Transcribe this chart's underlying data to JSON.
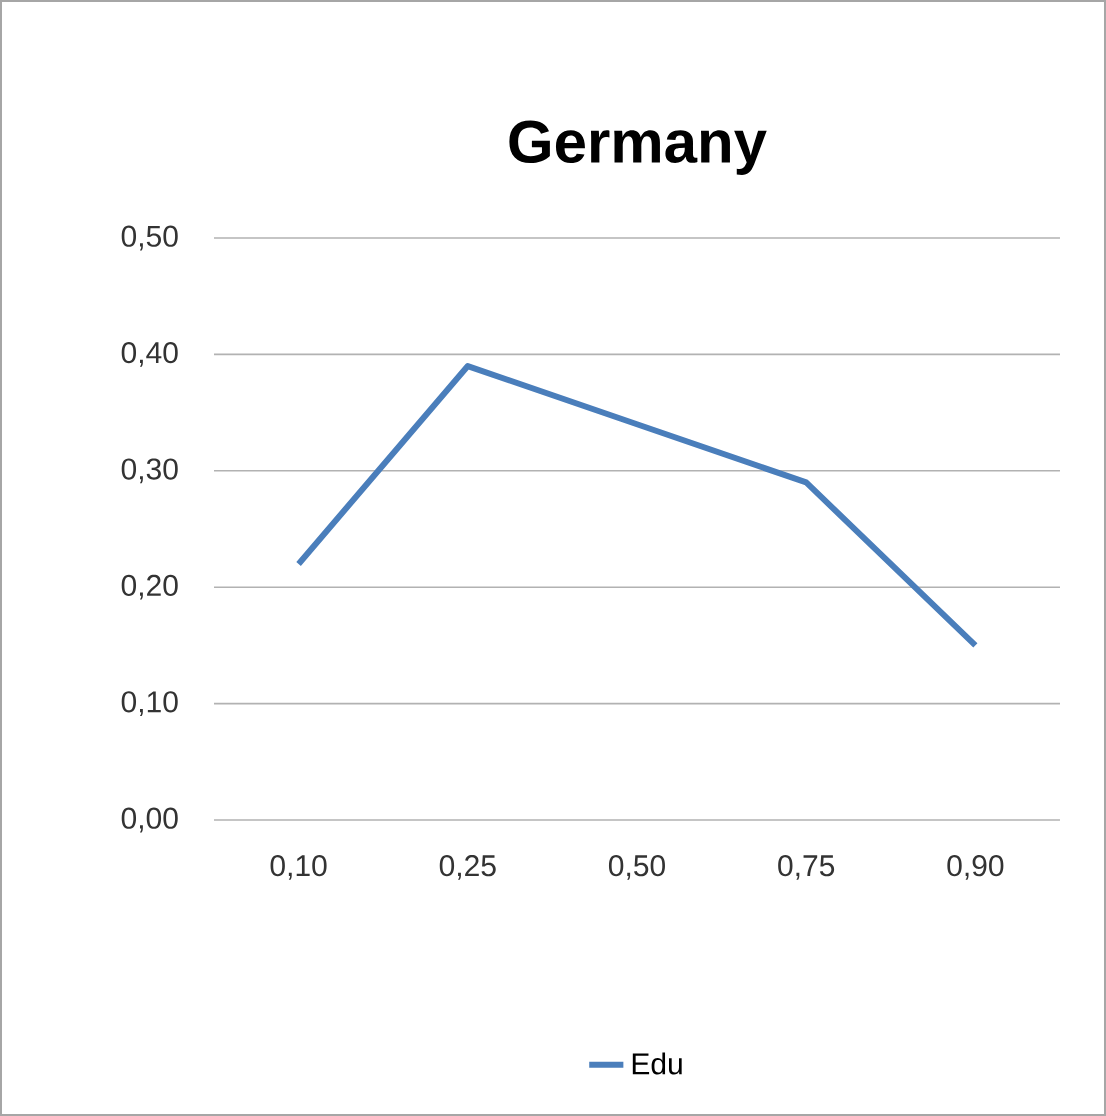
{
  "chart_data": {
    "type": "line",
    "title": "Germany",
    "categories": [
      "0,10",
      "0,25",
      "0,50",
      "0,75",
      "0,90"
    ],
    "series": [
      {
        "name": "Edu",
        "color": "#4a7ebb",
        "values": [
          0.22,
          0.39,
          0.34,
          0.29,
          0.15
        ]
      }
    ],
    "ylim": [
      0,
      0.5
    ],
    "yticks": [
      {
        "value": 0,
        "label": "0,00"
      },
      {
        "value": 0.1,
        "label": "0,10"
      },
      {
        "value": 0.2,
        "label": "0,20"
      },
      {
        "value": 0.3,
        "label": "0,30"
      },
      {
        "value": 0.4,
        "label": "0,40"
      },
      {
        "value": 0.5,
        "label": "0,50"
      }
    ],
    "grid": "y",
    "legend": "bottom"
  }
}
